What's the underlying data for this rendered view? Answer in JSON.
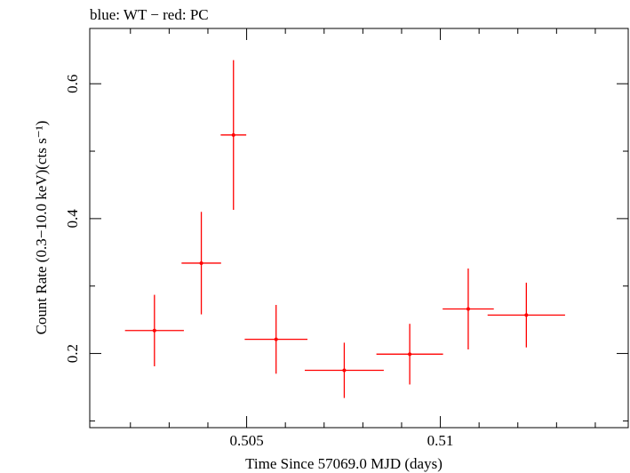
{
  "chart_data": {
    "type": "scatter",
    "title": "blue: WT − red: PC",
    "xlabel": "Time Since 57069.0 MJD (days)",
    "ylabel": "Count Rate (0.3−10.0 keV)(cts s⁻¹)",
    "xlim": [
      0.50095,
      0.51485
    ],
    "ylim": [
      0.09,
      0.682
    ],
    "xtick_labels": [
      {
        "value": 0.505,
        "label": "0.505"
      },
      {
        "value": 0.51,
        "label": "0.51"
      }
    ],
    "ytick_labels": [
      {
        "value": 0.2,
        "label": "0.2"
      },
      {
        "value": 0.4,
        "label": "0.4"
      },
      {
        "value": 0.6,
        "label": "0.6"
      }
    ],
    "x_major_ticks": [
      0.505,
      0.51
    ],
    "x_minor_ticks": [
      0.502,
      0.503,
      0.504,
      0.506,
      0.507,
      0.508,
      0.509,
      0.511,
      0.512,
      0.513,
      0.514
    ],
    "y_major_ticks": [
      0.2,
      0.4,
      0.6
    ],
    "y_minor_ticks": [
      0.1,
      0.3,
      0.5
    ],
    "series": [
      {
        "name": "PC",
        "color": "#ff0000",
        "points": [
          {
            "x": 0.50262,
            "xerr": 0.00076,
            "y": 0.234,
            "yerr": 0.053
          },
          {
            "x": 0.50383,
            "xerr": 0.00051,
            "y": 0.334,
            "yerr": 0.076
          },
          {
            "x": 0.50466,
            "xerr": 0.00033,
            "y": 0.524,
            "yerr": 0.111
          },
          {
            "x": 0.50576,
            "xerr": 0.00081,
            "y": 0.221,
            "yerr": 0.051
          },
          {
            "x": 0.50752,
            "xerr": 0.00102,
            "y": 0.175,
            "yerr": 0.041
          },
          {
            "x": 0.50921,
            "xerr": 0.00086,
            "y": 0.199,
            "yerr": 0.045
          },
          {
            "x": 0.51072,
            "xerr": 0.00066,
            "y": 0.266,
            "yerr": 0.06
          },
          {
            "x": 0.51222,
            "xerr": 0.001,
            "y": 0.257,
            "yerr": 0.048
          }
        ]
      },
      {
        "name": "WT",
        "color": "#0000ff",
        "points": []
      }
    ]
  }
}
